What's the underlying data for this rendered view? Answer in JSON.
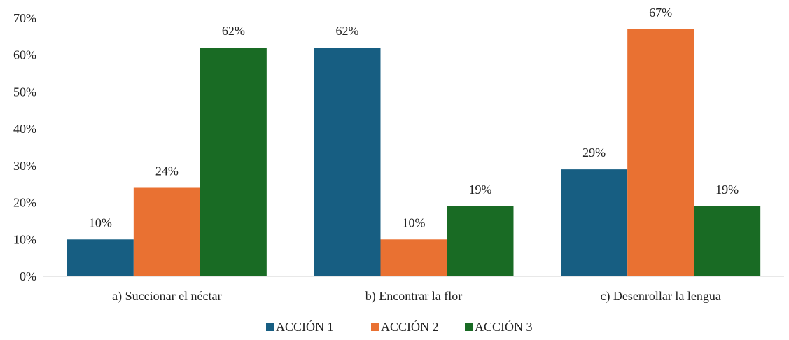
{
  "chart_data": {
    "type": "bar",
    "categories": [
      "a) Succionar el néctar",
      "b) Encontrar la flor",
      "c) Desenrollar la lengua"
    ],
    "series": [
      {
        "name": "ACCIÓN 1",
        "values": [
          10,
          62,
          29
        ],
        "labels": [
          "10%",
          "62%",
          "29%"
        ],
        "color": "#175e82"
      },
      {
        "name": "ACCIÓN 2",
        "values": [
          24,
          10,
          67
        ],
        "labels": [
          "24%",
          "10%",
          "67%"
        ],
        "color": "#e97132"
      },
      {
        "name": "ACCIÓN 3",
        "values": [
          62,
          19,
          19
        ],
        "labels": [
          "62%",
          "19%",
          "19%"
        ],
        "color": "#196b24"
      }
    ],
    "ylim": [
      0,
      70
    ],
    "yticks": [
      "0%",
      "10%",
      "20%",
      "30%",
      "40%",
      "50%",
      "60%",
      "70%"
    ],
    "grid": false,
    "legend_position": "bottom",
    "title": "",
    "xlabel": "",
    "ylabel": ""
  }
}
